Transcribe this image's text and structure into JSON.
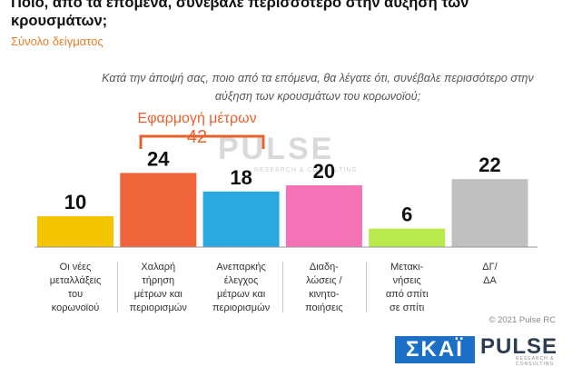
{
  "title": "Ποιο, από τα επόμενα, συνέβαλε περισσότερο στην αύξηση των κρουσμάτων;",
  "subtitle": "Σύνολο δείγματος",
  "question": "Κατά την άποψή σας, ποιο από τα επόμενα, θα λέγατε ότι, συνέβαλε περισσότερο στην αύξηση των κρουσμάτων του κορωνοϊού;",
  "group": {
    "label": "Εφαρμογή μέτρων",
    "value": "42"
  },
  "watermark": {
    "name": "PULSE",
    "tagline": "RESEARCH & CONSULTING"
  },
  "copyright": "© 2021 Pulse RC",
  "logos": {
    "skai": "ΣΚΑΪ",
    "pulse": "PULSE",
    "pulse_sub": "RESEARCH & CONSULTING"
  },
  "chart_data": {
    "type": "bar",
    "categories": [
      "Οι νέες μεταλλάξεις του κορωνοϊού",
      "Χαλαρή τήρηση μέτρων και περιορισμών",
      "Ανεπαρκής έλεγχος μέτρων και περιορισμών",
      "Διαδη-λώσεις / κινητο-ποιήσεις",
      "Μετακι-νήσεις από σπίτι σε σπίτι",
      "ΔΓ/ ΔΑ"
    ],
    "category_lines": [
      [
        "Οι νέες",
        "μεταλλάξεις",
        "του",
        "κορωνοϊού"
      ],
      [
        "Χαλαρή",
        "τήρηση",
        "μέτρων και",
        "περιορισμών"
      ],
      [
        "Ανεπαρκής",
        "έλεγχος",
        "μέτρων και",
        "περιορισμών"
      ],
      [
        "Διαδη-",
        "λώσεις /",
        "κινητο-",
        "ποιήσεις"
      ],
      [
        "Μετακι-",
        "νήσεις",
        "από σπίτι",
        "σε σπίτι"
      ],
      [
        "ΔΓ/",
        "ΔΑ"
      ]
    ],
    "values": [
      10,
      24,
      18,
      20,
      6,
      22
    ],
    "value_labels": [
      "10",
      "24",
      "18",
      "20",
      "6",
      "22"
    ],
    "colors": [
      "#f5c400",
      "#f0643c",
      "#29a9e0",
      "#f472b6",
      "#b7ea4a",
      "#c0c0c0"
    ],
    "ylim": [
      0,
      30
    ],
    "grid": false,
    "legend": "none"
  }
}
